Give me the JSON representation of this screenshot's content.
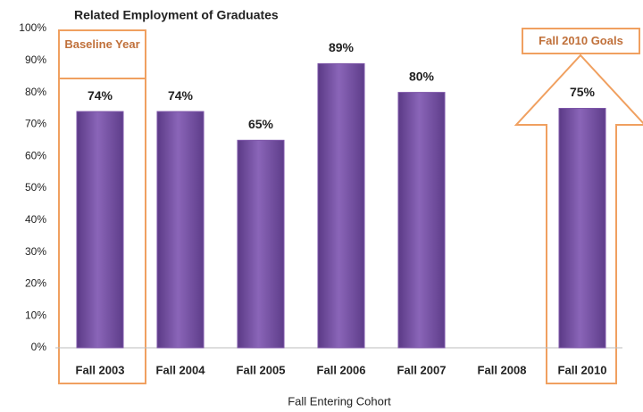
{
  "chart_data": {
    "type": "bar",
    "title": "Related Employment of Graduates",
    "x_label": "Fall Entering Cohort",
    "categories": [
      "Fall 2003",
      "Fall 2004",
      "Fall 2005",
      "Fall 2006",
      "Fall 2007",
      "Fall 2008",
      "Fall 2010"
    ],
    "values": [
      74,
      74,
      65,
      89,
      80,
      null,
      75
    ],
    "value_labels": [
      "74%",
      "74%",
      "65%",
      "89%",
      "80%",
      null,
      "75%"
    ],
    "color": "#7d56a8",
    "ylim": [
      0,
      100
    ],
    "yticks": [
      {
        "value": 0,
        "label": "0%"
      },
      {
        "value": 10,
        "label": "10%"
      },
      {
        "value": 20,
        "label": "20%"
      },
      {
        "value": 30,
        "label": "30%"
      },
      {
        "value": 40,
        "label": "40%"
      },
      {
        "value": 50,
        "label": "50%"
      },
      {
        "value": 60,
        "label": "60%"
      },
      {
        "value": 70,
        "label": "70%"
      },
      {
        "value": 80,
        "label": "80%"
      },
      {
        "value": 90,
        "label": "90%"
      },
      {
        "value": 100,
        "label": "100%"
      }
    ],
    "grid": false,
    "annotations": [
      "Baseline Year",
      "Fall 2010 Goals"
    ]
  }
}
